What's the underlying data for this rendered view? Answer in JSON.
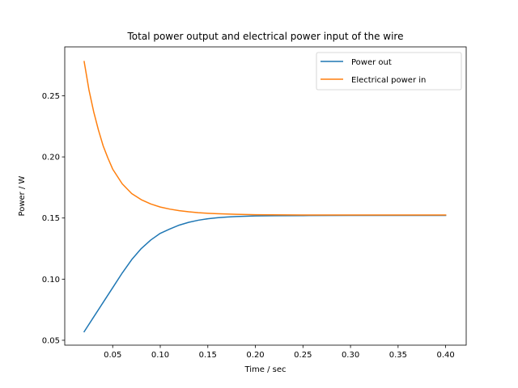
{
  "chart_data": {
    "type": "line",
    "title": "Total power output and electrical power input of the wire",
    "xlabel": "Time / sec",
    "ylabel": "Power / W",
    "xlim": [
      -0.0004,
      0.4216
    ],
    "ylim": [
      0.046,
      0.29
    ],
    "xticks": [
      0.05,
      0.1,
      0.15,
      0.2,
      0.25,
      0.3,
      0.35,
      0.4
    ],
    "xtick_labels": [
      "0.05",
      "0.10",
      "0.15",
      "0.20",
      "0.25",
      "0.30",
      "0.35",
      "0.40"
    ],
    "yticks": [
      0.05,
      0.1,
      0.15,
      0.2,
      0.25
    ],
    "ytick_labels": [
      "0.05",
      "0.10",
      "0.15",
      "0.20",
      "0.25"
    ],
    "grid": false,
    "legend_position": "top-right",
    "series": [
      {
        "name": "Power out",
        "color": "#1f77b4",
        "x": [
          0.02,
          0.03,
          0.04,
          0.05,
          0.06,
          0.07,
          0.08,
          0.09,
          0.1,
          0.11,
          0.12,
          0.13,
          0.14,
          0.15,
          0.16,
          0.17,
          0.18,
          0.2,
          0.22,
          0.25,
          0.3,
          0.35,
          0.4
        ],
        "y": [
          0.057,
          0.069,
          0.081,
          0.093,
          0.105,
          0.116,
          0.125,
          0.132,
          0.1375,
          0.141,
          0.1442,
          0.1465,
          0.1482,
          0.1494,
          0.1502,
          0.1508,
          0.1512,
          0.1517,
          0.1519,
          0.152,
          0.1521,
          0.1521,
          0.1521
        ]
      },
      {
        "name": "Electrical power in",
        "color": "#ff7f0e",
        "x": [
          0.02,
          0.025,
          0.03,
          0.035,
          0.04,
          0.045,
          0.05,
          0.06,
          0.07,
          0.08,
          0.09,
          0.1,
          0.11,
          0.12,
          0.13,
          0.14,
          0.15,
          0.16,
          0.18,
          0.2,
          0.25,
          0.3,
          0.35,
          0.4
        ],
        "y": [
          0.278,
          0.255,
          0.237,
          0.222,
          0.209,
          0.199,
          0.19,
          0.178,
          0.17,
          0.165,
          0.1615,
          0.159,
          0.1573,
          0.156,
          0.1551,
          0.1544,
          0.1539,
          0.1535,
          0.153,
          0.1527,
          0.1525,
          0.1525,
          0.1525,
          0.1525
        ]
      }
    ]
  }
}
